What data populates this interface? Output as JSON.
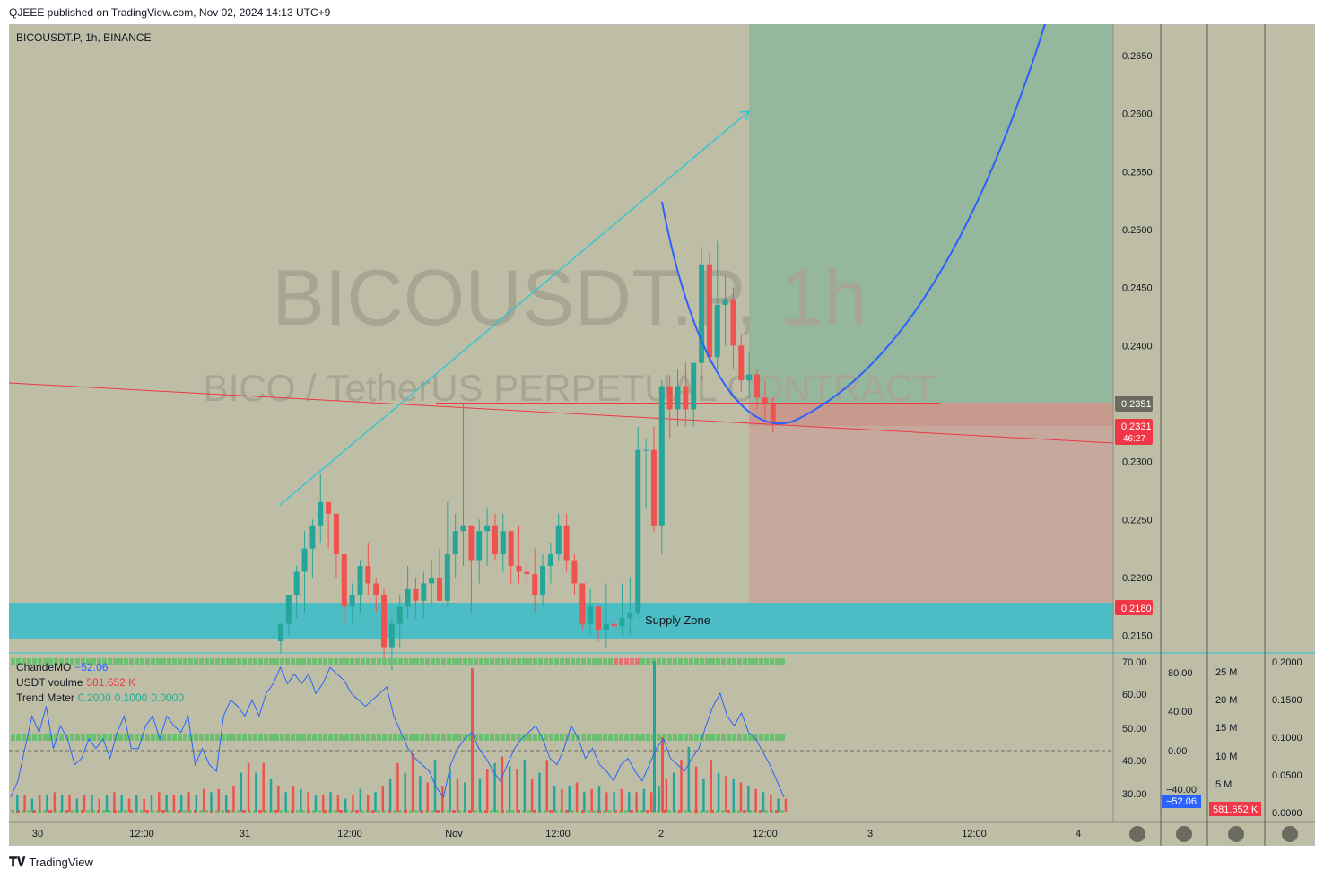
{
  "header": {
    "caption": "QJEEE published on TradingView.com, Nov 02, 2024 14:13 UTC+9",
    "symbol_line": "BICOUSDT.P, 1h, BINANCE"
  },
  "watermark": {
    "line1": "BICOUSDT.P, 1h",
    "line2": "BICO / TetherUS PERPETUAL CONTRACT"
  },
  "colors": {
    "background": "#bebea6",
    "bull": "#26a69a",
    "bear": "#ef5350",
    "supply_zone": "#4dbdc5",
    "target_zone": "#95b79e",
    "stop_zone": "#c6a89c",
    "curve": "#2962ff",
    "trendline": "#f23645",
    "arrow": "#26c6da",
    "rsi_line": "#2962ff"
  },
  "annotations": {
    "supply_zone_label": "Supply Zone"
  },
  "chart_data": {
    "type": "candlestick",
    "symbol": "BICOUSDT.P",
    "interval": "1h",
    "exchange": "BINANCE",
    "y_axis": {
      "range": [
        0.2135,
        0.2677
      ],
      "ticks": [
        "0.2650",
        "0.2600",
        "0.2550",
        "0.2500",
        "0.2450",
        "0.2400",
        "0.2300",
        "0.2250",
        "0.2200",
        "0.2150"
      ]
    },
    "price_labels": {
      "entry": "0.2351",
      "last": "0.2331",
      "countdown": "46:27",
      "stop": "0.2180"
    },
    "x_axis": {
      "ticks": [
        "30",
        "12:00",
        "31",
        "12:00",
        "Nov",
        "12:00",
        "2",
        "12:00",
        "3",
        "12:00",
        "4"
      ]
    },
    "candles": [
      [
        0.2145,
        0.216,
        0.2135,
        0.216
      ],
      [
        0.216,
        0.2185,
        0.215,
        0.2185
      ],
      [
        0.2185,
        0.221,
        0.2165,
        0.2205
      ],
      [
        0.2205,
        0.224,
        0.217,
        0.2225
      ],
      [
        0.2225,
        0.225,
        0.22,
        0.2245
      ],
      [
        0.2245,
        0.229,
        0.223,
        0.2265
      ],
      [
        0.2265,
        0.2265,
        0.2225,
        0.2255
      ],
      [
        0.2255,
        0.2255,
        0.22,
        0.222
      ],
      [
        0.222,
        0.222,
        0.216,
        0.2175
      ],
      [
        0.2175,
        0.2195,
        0.216,
        0.2185
      ],
      [
        0.2185,
        0.2215,
        0.217,
        0.221
      ],
      [
        0.221,
        0.223,
        0.2185,
        0.2195
      ],
      [
        0.2195,
        0.22,
        0.217,
        0.2185
      ],
      [
        0.2185,
        0.219,
        0.213,
        0.214
      ],
      [
        0.214,
        0.2165,
        0.212,
        0.216
      ],
      [
        0.216,
        0.2185,
        0.214,
        0.2175
      ],
      [
        0.2175,
        0.221,
        0.2165,
        0.219
      ],
      [
        0.219,
        0.22,
        0.2165,
        0.218
      ],
      [
        0.218,
        0.2205,
        0.2165,
        0.2195
      ],
      [
        0.2195,
        0.2215,
        0.2175,
        0.22
      ],
      [
        0.22,
        0.2225,
        0.218,
        0.218
      ],
      [
        0.218,
        0.2265,
        0.2175,
        0.222
      ],
      [
        0.222,
        0.2255,
        0.22,
        0.224
      ],
      [
        0.224,
        0.235,
        0.221,
        0.2245
      ],
      [
        0.2245,
        0.2245,
        0.217,
        0.2215
      ],
      [
        0.2215,
        0.225,
        0.2195,
        0.224
      ],
      [
        0.224,
        0.226,
        0.221,
        0.2245
      ],
      [
        0.2245,
        0.2255,
        0.2215,
        0.222
      ],
      [
        0.222,
        0.2255,
        0.2205,
        0.224
      ],
      [
        0.224,
        0.224,
        0.2195,
        0.221
      ],
      [
        0.221,
        0.2245,
        0.2195,
        0.2205
      ],
      [
        0.2205,
        0.2215,
        0.2195,
        0.2203
      ],
      [
        0.2203,
        0.2225,
        0.217,
        0.2185
      ],
      [
        0.2185,
        0.222,
        0.2175,
        0.221
      ],
      [
        0.221,
        0.223,
        0.2195,
        0.222
      ],
      [
        0.222,
        0.2255,
        0.2215,
        0.2245
      ],
      [
        0.2245,
        0.2255,
        0.2205,
        0.2215
      ],
      [
        0.2215,
        0.222,
        0.2185,
        0.2195
      ],
      [
        0.2195,
        0.2195,
        0.2155,
        0.216
      ],
      [
        0.216,
        0.219,
        0.215,
        0.2175
      ],
      [
        0.2175,
        0.2175,
        0.2145,
        0.2155
      ],
      [
        0.2155,
        0.2195,
        0.214,
        0.216
      ],
      [
        0.216,
        0.2165,
        0.2155,
        0.2158
      ],
      [
        0.2158,
        0.2195,
        0.215,
        0.2165
      ],
      [
        0.2165,
        0.22,
        0.215,
        0.217
      ],
      [
        0.217,
        0.233,
        0.2165,
        0.231
      ],
      [
        0.231,
        0.232,
        0.226,
        0.231
      ],
      [
        0.231,
        0.233,
        0.224,
        0.2245
      ],
      [
        0.2245,
        0.237,
        0.222,
        0.2365
      ],
      [
        0.2365,
        0.2375,
        0.232,
        0.2345
      ],
      [
        0.2345,
        0.238,
        0.233,
        0.2365
      ],
      [
        0.2365,
        0.2385,
        0.233,
        0.2345
      ],
      [
        0.2345,
        0.2385,
        0.233,
        0.2385
      ],
      [
        0.2385,
        0.2485,
        0.237,
        0.247
      ],
      [
        0.247,
        0.248,
        0.2385,
        0.239
      ],
      [
        0.239,
        0.249,
        0.238,
        0.2435
      ],
      [
        0.2435,
        0.246,
        0.24,
        0.244
      ],
      [
        0.244,
        0.245,
        0.238,
        0.24
      ],
      [
        0.24,
        0.241,
        0.236,
        0.237
      ],
      [
        0.237,
        0.2395,
        0.2355,
        0.2375
      ],
      [
        0.2375,
        0.238,
        0.2345,
        0.2355
      ],
      [
        0.2355,
        0.237,
        0.2335,
        0.235
      ],
      [
        0.235,
        0.2355,
        0.2325,
        0.2331
      ]
    ],
    "indicators": {
      "chande_mo": {
        "name": "ChandeMO",
        "value": "−52.06",
        "axis_ticks": [
          "80.00",
          "40.00",
          "0.00",
          "−40.00"
        ]
      },
      "usdt_volume": {
        "name": "USDT voulme",
        "value": "581.652 K",
        "axis_ticks": [
          "25 M",
          "20 M",
          "15 M",
          "10 M",
          "5 M"
        ]
      },
      "trend_meter": {
        "name": "Trend Meter",
        "values": [
          "0.2000",
          "0.1000",
          "0.0000"
        ],
        "axis_ticks": [
          "0.2000",
          "0.1500",
          "0.1000",
          "0.0500",
          "0.0000"
        ]
      },
      "oscillator_axis_ticks": [
        "70.00",
        "60.00",
        "50.00",
        "40.00",
        "30.00"
      ],
      "oscillator_line": [
        30,
        35,
        45,
        55,
        50,
        58,
        45,
        52,
        48,
        40,
        42,
        48,
        45,
        48,
        42,
        50,
        55,
        45,
        45,
        52,
        55,
        48,
        55,
        52,
        50,
        55,
        40,
        45,
        40,
        38,
        55,
        60,
        58,
        55,
        60,
        55,
        62,
        65,
        70,
        65,
        68,
        65,
        68,
        62,
        65,
        70,
        68,
        66,
        62,
        60,
        58,
        60,
        62,
        64,
        55,
        50,
        45,
        42,
        40,
        38,
        33,
        30,
        40,
        45,
        48,
        50,
        45,
        42,
        38,
        35,
        40,
        45,
        48,
        50,
        52,
        48,
        42,
        40,
        45,
        52,
        48,
        42,
        45,
        40,
        38,
        35,
        40,
        42,
        38,
        35,
        40,
        45,
        48,
        42,
        40,
        38,
        42,
        45,
        52,
        58,
        62,
        55,
        52,
        56,
        50,
        48,
        44,
        40,
        35,
        30
      ],
      "volume_bars": [
        0.5,
        0.5,
        0.4,
        0.5,
        0.5,
        0.6,
        0.5,
        0.5,
        0.4,
        0.5,
        0.5,
        0.4,
        0.5,
        0.6,
        0.5,
        0.4,
        0.5,
        0.4,
        0.5,
        0.6,
        0.5,
        0.5,
        0.5,
        0.6,
        0.5,
        0.7,
        0.6,
        0.7,
        0.5,
        0.8,
        1.2,
        1.5,
        1.2,
        1.5,
        1.0,
        0.8,
        0.6,
        0.8,
        0.7,
        0.6,
        0.5,
        0.5,
        0.6,
        0.5,
        0.4,
        0.5,
        0.7,
        0.5,
        0.6,
        0.8,
        1.0,
        1.5,
        1.2,
        1.8,
        1.1,
        0.9,
        1.6,
        0.8,
        1.3,
        1.0,
        0.9,
        1.2,
        1.0,
        1.3,
        1.5,
        1.7,
        1.4,
        1.3,
        1.6,
        1.0,
        1.2,
        1.6,
        0.8,
        0.7,
        0.8,
        0.9,
        0.6,
        0.7,
        0.8,
        0.6,
        0.6,
        0.7,
        0.6,
        0.6,
        0.7,
        0.6,
        0.8,
        1.0,
        1.2,
        1.6,
        2.0,
        1.4,
        1.0,
        1.6,
        1.2,
        1.1,
        1.0,
        0.9,
        0.8,
        0.7,
        0.6,
        0.5,
        0.4,
        0.4
      ]
    }
  }
}
